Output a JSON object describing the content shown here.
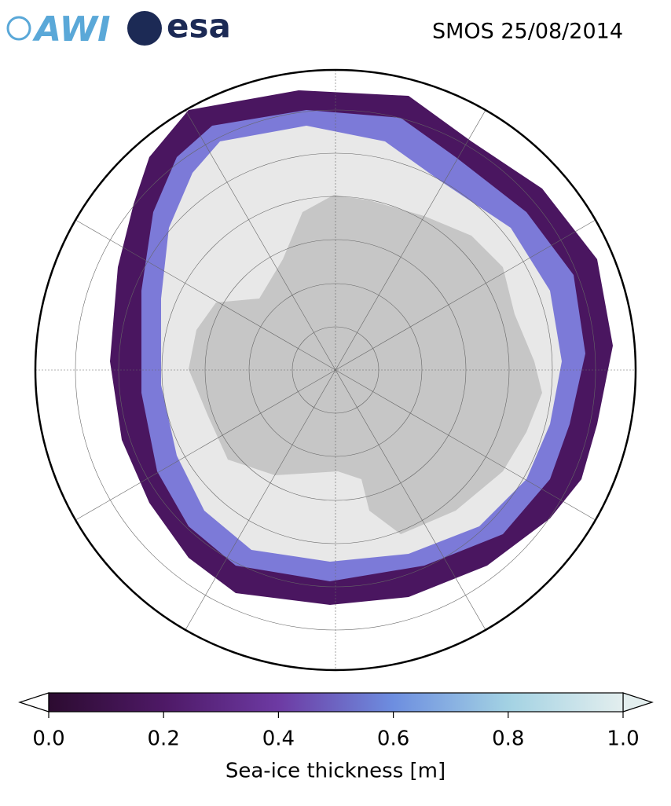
{
  "header": {
    "logos": [
      "AWI",
      "esa"
    ],
    "title": "SMOS 25/08/2014"
  },
  "colorbar": {
    "label": "Sea-ice thickness [m]",
    "lim": [
      0,
      1
    ],
    "ticks": [
      {
        "value": 0,
        "label": "0.0"
      },
      0.2,
      0.4,
      0.6,
      0.8,
      {
        "value": 1,
        "label": "1.0"
      }
    ],
    "colors": [
      "#2c0b30",
      "#4e1966",
      "#6d3aa3",
      "#6d8ee0",
      "#a3d2e3",
      "#e3eeee"
    ],
    "extend": "both"
  }
}
